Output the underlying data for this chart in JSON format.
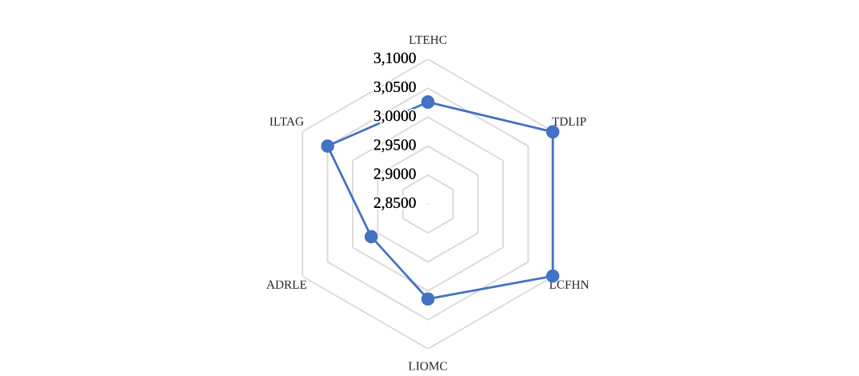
{
  "chart_data": {
    "type": "radar",
    "categories": [
      "LTEHC",
      "TDLIP",
      "LCFHN",
      "LIOMC",
      "ADRLE",
      "ILTAG"
    ],
    "series": [
      {
        "color": "#4472c4",
        "values": [
          3.026,
          3.099,
          3.099,
          3.014,
          2.963,
          3.05
        ]
      }
    ],
    "ylim": [
      2.85,
      3.1
    ],
    "yticks": [
      {
        "value": 2.85,
        "label": "2,8500"
      },
      {
        "value": 2.9,
        "label": "2,9000"
      },
      {
        "value": 2.95,
        "label": "2,9500"
      },
      {
        "value": 3.0,
        "label": "3,0000"
      },
      {
        "value": 3.05,
        "label": "3,0500"
      },
      {
        "value": 3.1,
        "label": "3,1000"
      }
    ],
    "grid": true,
    "marker": "circle",
    "line_style": "solid",
    "legend": false
  }
}
